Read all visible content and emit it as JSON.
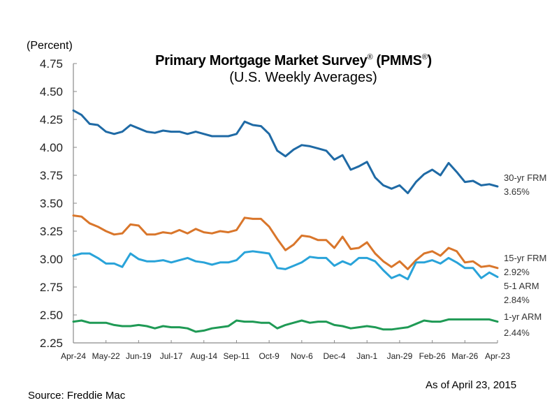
{
  "chart_data": {
    "type": "line",
    "title": "Primary Mortgage Market Survey",
    "title_suffix": "(PMMS",
    "registered_mark": "®",
    "subtitle": "(U.S. Weekly Averages)",
    "ylabel": "(Percent)",
    "xlabel": "",
    "ylim": [
      2.25,
      4.75
    ],
    "yticks": [
      "4.75",
      "4.50",
      "4.25",
      "4.00",
      "3.75",
      "3.50",
      "3.25",
      "3.00",
      "2.75",
      "2.50",
      "2.25"
    ],
    "ytick_values": [
      4.75,
      4.5,
      4.25,
      4.0,
      3.75,
      3.5,
      3.25,
      3.0,
      2.75,
      2.5,
      2.25
    ],
    "xtick_labels": [
      "Apr-24",
      "May-22",
      "Jun-19",
      "Jul-17",
      "Aug-14",
      "Sep-11",
      "Oct-9",
      "Nov-6",
      "Dec-4",
      "Jan-1",
      "Jan-29",
      "Feb-26",
      "Mar-26",
      "Apr-23"
    ],
    "xtick_indices": [
      0,
      4,
      8,
      12,
      16,
      20,
      24,
      28,
      32,
      36,
      40,
      44,
      48,
      52
    ],
    "grid": false,
    "legend": "end-of-line labels on right",
    "series": [
      {
        "name": "30-yr FRM",
        "last_label": "3.65%",
        "color": "#1f6aa5",
        "values": [
          4.33,
          4.29,
          4.21,
          4.2,
          4.14,
          4.12,
          4.14,
          4.2,
          4.17,
          4.14,
          4.13,
          4.15,
          4.14,
          4.14,
          4.12,
          4.14,
          4.12,
          4.1,
          4.1,
          4.1,
          4.12,
          4.23,
          4.2,
          4.19,
          4.12,
          3.97,
          3.92,
          3.98,
          4.02,
          4.01,
          3.99,
          3.97,
          3.89,
          3.93,
          3.8,
          3.83,
          3.87,
          3.73,
          3.66,
          3.63,
          3.66,
          3.59,
          3.69,
          3.76,
          3.8,
          3.75,
          3.86,
          3.78,
          3.69,
          3.7,
          3.66,
          3.67,
          3.65
        ]
      },
      {
        "name": "15-yr FRM",
        "last_label": "2.92%",
        "color": "#d9762b",
        "values": [
          3.39,
          3.38,
          3.32,
          3.29,
          3.25,
          3.22,
          3.23,
          3.31,
          3.3,
          3.22,
          3.22,
          3.24,
          3.23,
          3.26,
          3.23,
          3.27,
          3.24,
          3.23,
          3.25,
          3.24,
          3.26,
          3.37,
          3.36,
          3.36,
          3.29,
          3.18,
          3.08,
          3.13,
          3.21,
          3.2,
          3.17,
          3.17,
          3.1,
          3.2,
          3.09,
          3.1,
          3.15,
          3.05,
          2.98,
          2.93,
          2.98,
          2.91,
          2.99,
          3.05,
          3.07,
          3.03,
          3.1,
          3.07,
          2.97,
          2.98,
          2.93,
          2.94,
          2.92
        ]
      },
      {
        "name": "5-1 ARM",
        "last_label": "2.84%",
        "color": "#29a3d9",
        "values": [
          3.03,
          3.05,
          3.05,
          3.01,
          2.96,
          2.96,
          2.93,
          3.05,
          3.0,
          2.98,
          2.98,
          2.99,
          2.97,
          2.99,
          3.01,
          2.98,
          2.97,
          2.95,
          2.97,
          2.97,
          2.99,
          3.06,
          3.07,
          3.06,
          3.05,
          2.92,
          2.91,
          2.94,
          2.97,
          3.02,
          3.01,
          3.01,
          2.94,
          2.98,
          2.95,
          3.01,
          3.01,
          2.98,
          2.9,
          2.83,
          2.86,
          2.82,
          2.97,
          2.97,
          2.99,
          2.96,
          3.01,
          2.97,
          2.92,
          2.92,
          2.83,
          2.88,
          2.84
        ]
      },
      {
        "name": "1-yr ARM",
        "last_label": "2.44%",
        "color": "#1f9a55",
        "values": [
          2.44,
          2.45,
          2.43,
          2.43,
          2.43,
          2.41,
          2.4,
          2.4,
          2.41,
          2.4,
          2.38,
          2.4,
          2.39,
          2.39,
          2.38,
          2.35,
          2.36,
          2.38,
          2.39,
          2.4,
          2.45,
          2.44,
          2.44,
          2.43,
          2.43,
          2.38,
          2.41,
          2.43,
          2.45,
          2.43,
          2.44,
          2.44,
          2.41,
          2.4,
          2.38,
          2.39,
          2.4,
          2.39,
          2.37,
          2.37,
          2.38,
          2.39,
          2.42,
          2.45,
          2.44,
          2.44,
          2.46,
          2.46,
          2.46,
          2.46,
          2.46,
          2.46,
          2.44
        ]
      }
    ]
  },
  "footer": {
    "source": "Source: Freddie Mac",
    "as_of": "As of April 23, 2015"
  }
}
